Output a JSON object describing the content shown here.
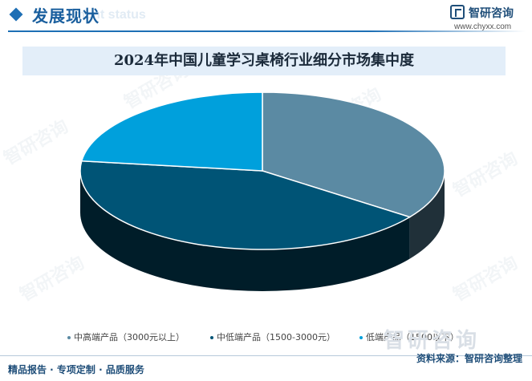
{
  "header": {
    "section_title": "发展现状",
    "section_title_en": "ment status",
    "logo_name": "智研咨询",
    "logo_url": "www.chyxx.com"
  },
  "chart_data": {
    "type": "pie",
    "title": "2024年中国儿童学习桌椅行业细分市场集中度",
    "categories": [
      "中高端产品（3000元以上）",
      "中低端产品（1500-3000元）",
      "低端产品（1500以下）"
    ],
    "values": [
      35,
      42,
      23
    ],
    "colors": [
      "#5b8aa3",
      "#005476",
      "#00a0dc"
    ],
    "legend_position": "bottom",
    "three_d": true
  },
  "footer": {
    "left": "精品报告 · 专项定制 · 品质服务",
    "right": "资料来源：智研咨询整理",
    "watermark": "智研咨询"
  },
  "watermarks": [
    "智研咨询",
    "智研咨询",
    "智研咨询",
    "智研咨询",
    "智研咨询",
    "智研咨询"
  ]
}
